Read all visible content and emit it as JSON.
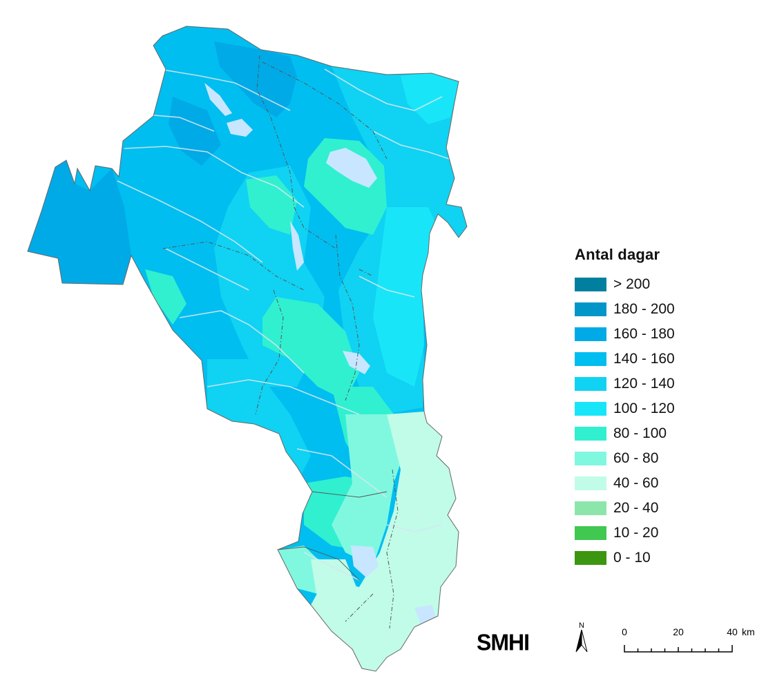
{
  "legend": {
    "title": "Antal dagar",
    "classes": [
      {
        "label": "> 200",
        "color": "#00809e"
      },
      {
        "label": "180 - 200",
        "color": "#0096c8"
      },
      {
        "label": "160 - 180",
        "color": "#00aae6"
      },
      {
        "label": "140 - 160",
        "color": "#00bef0"
      },
      {
        "label": "120 - 140",
        "color": "#10d2f2"
      },
      {
        "label": "100 - 120",
        "color": "#18e6f8"
      },
      {
        "label": "80 - 100",
        "color": "#30f0d0"
      },
      {
        "label": "60 - 80",
        "color": "#80f8e0"
      },
      {
        "label": "40 - 60",
        "color": "#c0fce8"
      },
      {
        "label": "20 - 40",
        "color": "#8ce6ac"
      },
      {
        "label": "10 - 20",
        "color": "#40c850"
      },
      {
        "label": "0 - 10",
        "color": "#3c9610"
      }
    ]
  },
  "logo": {
    "text": "SMHI"
  },
  "north_arrow": {
    "label": "N"
  },
  "scale_bar": {
    "ticks": [
      "0",
      "20",
      "40"
    ],
    "unit": "km"
  },
  "colors": {
    "boundary": "#555555",
    "rivers": "#d8e6f0",
    "lakes": "#c8e6ff"
  }
}
